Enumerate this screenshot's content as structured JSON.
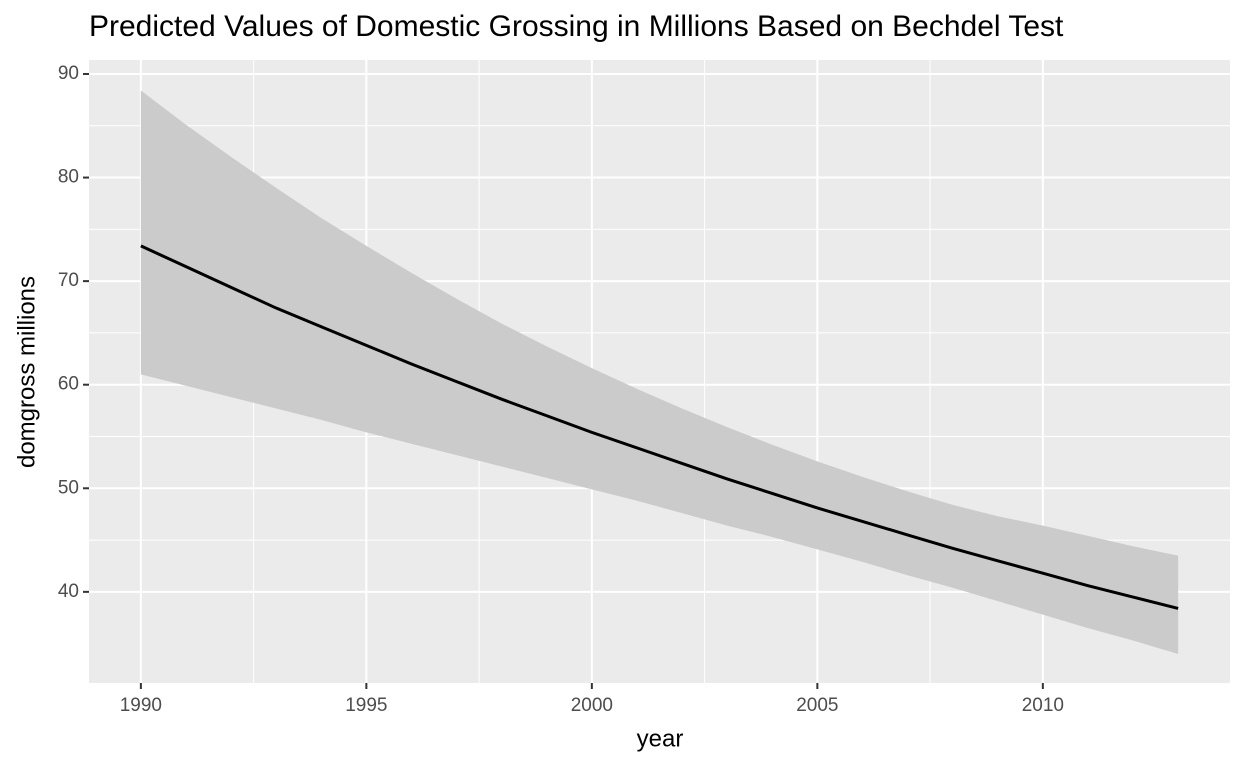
{
  "chart_data": {
    "type": "line",
    "title": "Predicted Values of Domestic Grossing in Millions Based on Bechdel Test",
    "x_label": "year",
    "y_label": "domgross millions",
    "x": [
      1990,
      1991,
      1992,
      1993,
      1994,
      1995,
      1996,
      1997,
      1998,
      1999,
      2000,
      2001,
      2002,
      2003,
      2004,
      2005,
      2006,
      2007,
      2008,
      2009,
      2010,
      2011,
      2012,
      2013
    ],
    "values": [
      73.4,
      71.4,
      69.4,
      67.4,
      65.6,
      63.8,
      62.0,
      60.3,
      58.6,
      57.0,
      55.4,
      53.9,
      52.4,
      50.9,
      49.5,
      48.1,
      46.8,
      45.5,
      44.2,
      43.0,
      41.8,
      40.6,
      39.5,
      38.4
    ],
    "upper": [
      88.4,
      85.1,
      82.0,
      79.0,
      76.1,
      73.4,
      70.8,
      68.3,
      65.9,
      63.7,
      61.6,
      59.6,
      57.7,
      55.9,
      54.2,
      52.6,
      51.1,
      49.7,
      48.4,
      47.3,
      46.4,
      45.4,
      44.4,
      43.5
    ],
    "lower": [
      61.0,
      59.9,
      58.8,
      57.7,
      56.6,
      55.4,
      54.3,
      53.2,
      52.1,
      51.0,
      49.9,
      48.8,
      47.6,
      46.4,
      45.3,
      44.1,
      42.9,
      41.6,
      40.4,
      39.1,
      37.8,
      36.5,
      35.3,
      34.0
    ],
    "color": "#000000",
    "band_color": "#cbcbcb",
    "xlim": [
      1988.85,
      2014.15
    ],
    "xticks": [
      1990,
      1995,
      2000,
      2005,
      2010
    ],
    "ylim": [
      31.2,
      91.35
    ],
    "yticks": [
      40,
      50,
      60,
      70,
      80,
      90
    ],
    "grid": true
  }
}
